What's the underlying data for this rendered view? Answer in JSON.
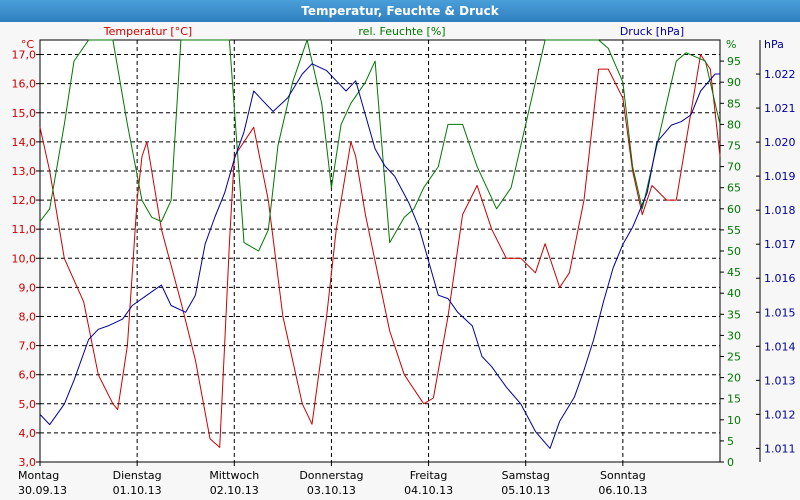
{
  "window_title": "Temperatur, Feuchte & Druck",
  "chart_data": {
    "type": "line",
    "title": "Temperatur, Feuchte & Druck",
    "x_ticks": [
      {
        "day": "Montag",
        "date": "30.09.13"
      },
      {
        "day": "Dienstag",
        "date": "01.10.13"
      },
      {
        "day": "Mittwoch",
        "date": "02.10.13"
      },
      {
        "day": "Donnerstag",
        "date": "03.10.13"
      },
      {
        "day": "Freitag",
        "date": "04.10.13"
      },
      {
        "day": "Samstag",
        "date": "05.10.13"
      },
      {
        "day": "Sonntag",
        "date": "06.10.13"
      }
    ],
    "x_range_days": [
      0,
      7
    ],
    "grid": true,
    "axes": {
      "temperature": {
        "label": "Temperatur [°C]",
        "unit": "°C",
        "min": 3.0,
        "max": 17.5,
        "ticks": [
          "3,0",
          "4,0",
          "5,0",
          "6,0",
          "7,0",
          "8,0",
          "9,0",
          "10,0",
          "11,0",
          "12,0",
          "13,0",
          "14,0",
          "15,0",
          "16,0",
          "17,0"
        ],
        "color": "#cc0000"
      },
      "humidity": {
        "label": "rel. Feuchte [%]",
        "unit": "%",
        "min": 0,
        "max": 100,
        "ticks": [
          "0",
          "5",
          "10",
          "15",
          "20",
          "25",
          "30",
          "35",
          "40",
          "45",
          "50",
          "55",
          "60",
          "65",
          "70",
          "75",
          "80",
          "85",
          "90",
          "95"
        ],
        "color": "#007700"
      },
      "pressure": {
        "label": "Druck [hPa]",
        "unit": "hPa",
        "min": 1010.6,
        "max": 1023.0,
        "ticks": [
          "1.011",
          "1.012",
          "1.013",
          "1.014",
          "1.015",
          "1.016",
          "1.017",
          "1.018",
          "1.019",
          "1.020",
          "1.021",
          "1.022"
        ],
        "color": "#000099"
      }
    },
    "series": [
      {
        "name": "Temperatur [°C]",
        "axis": "temperature",
        "color": "#cc0000",
        "x": [
          0.0,
          0.1,
          0.25,
          0.45,
          0.6,
          0.75,
          0.8,
          0.9,
          0.95,
          1.0,
          1.05,
          1.1,
          1.25,
          1.45,
          1.6,
          1.75,
          1.85,
          1.9,
          1.95,
          2.0,
          2.2,
          2.35,
          2.5,
          2.7,
          2.8,
          2.95,
          3.05,
          3.2,
          3.25,
          3.35,
          3.6,
          3.75,
          3.95,
          4.05,
          4.2,
          4.35,
          4.5,
          4.65,
          4.8,
          4.95,
          5.1,
          5.2,
          5.35,
          5.45,
          5.6,
          5.75,
          5.85,
          6.0,
          6.1,
          6.2,
          6.3,
          6.45,
          6.55,
          6.65,
          6.8,
          6.9,
          7.0
        ],
        "y": [
          14.5,
          13.0,
          10.0,
          8.5,
          6.0,
          5.0,
          4.8,
          7.0,
          9.5,
          12.0,
          13.5,
          14.0,
          11.0,
          8.5,
          6.5,
          3.8,
          3.5,
          7.0,
          10.5,
          13.5,
          14.5,
          12.0,
          8.0,
          5.0,
          4.3,
          8.0,
          11.0,
          14.0,
          13.5,
          11.5,
          7.5,
          6.0,
          5.0,
          5.2,
          8.0,
          11.5,
          12.5,
          11.0,
          10.0,
          10.0,
          9.5,
          10.5,
          9.0,
          9.5,
          12.0,
          16.5,
          16.5,
          15.5,
          13.0,
          11.5,
          12.5,
          12.0,
          12.0,
          14.0,
          17.0,
          16.5,
          13.5
        ]
      },
      {
        "name": "rel. Feuchte [%]",
        "axis": "humidity",
        "color": "#007700",
        "x": [
          0.0,
          0.1,
          0.25,
          0.35,
          0.5,
          0.6,
          0.75,
          0.9,
          1.05,
          1.15,
          1.25,
          1.35,
          1.45,
          1.6,
          1.75,
          1.95,
          2.1,
          2.25,
          2.35,
          2.45,
          2.6,
          2.75,
          2.9,
          3.0,
          3.1,
          3.2,
          3.35,
          3.45,
          3.6,
          3.75,
          3.85,
          3.95,
          4.1,
          4.2,
          4.35,
          4.5,
          4.6,
          4.7,
          4.85,
          5.0,
          5.1,
          5.2,
          5.35,
          5.5,
          5.6,
          5.75,
          5.85,
          6.0,
          6.1,
          6.2,
          6.35,
          6.45,
          6.55,
          6.65,
          6.75,
          6.85,
          6.95,
          7.0
        ],
        "y": [
          57,
          60,
          80,
          95,
          100,
          100,
          100,
          80,
          62,
          58,
          57,
          62,
          100,
          100,
          100,
          100,
          52,
          50,
          55,
          75,
          90,
          100,
          85,
          65,
          80,
          85,
          90,
          95,
          52,
          58,
          60,
          65,
          70,
          80,
          80,
          70,
          65,
          60,
          65,
          80,
          90,
          100,
          100,
          100,
          100,
          100,
          98,
          90,
          70,
          60,
          75,
          85,
          95,
          97,
          96,
          95,
          85,
          80
        ]
      },
      {
        "name": "Druck [hPa]",
        "axis": "pressure",
        "color": "#000099",
        "x": [
          0.0,
          0.1,
          0.25,
          0.35,
          0.5,
          0.6,
          0.7,
          0.85,
          0.95,
          1.1,
          1.25,
          1.35,
          1.5,
          1.6,
          1.7,
          1.8,
          1.9,
          2.0,
          2.1,
          2.2,
          2.3,
          2.4,
          2.55,
          2.7,
          2.8,
          2.95,
          3.05,
          3.15,
          3.25,
          3.35,
          3.45,
          3.55,
          3.65,
          3.8,
          3.9,
          4.0,
          4.1,
          4.2,
          4.3,
          4.45,
          4.55,
          4.65,
          4.8,
          4.95,
          5.1,
          5.25,
          5.35,
          5.5,
          5.6,
          5.7,
          5.8,
          5.9,
          6.0,
          6.1,
          6.25,
          6.35,
          6.5,
          6.6,
          6.7,
          6.8,
          6.95,
          7.0
        ],
        "y": [
          1012.0,
          1011.7,
          1012.3,
          1013.0,
          1014.2,
          1014.5,
          1014.6,
          1014.8,
          1015.2,
          1015.5,
          1015.8,
          1015.2,
          1015.0,
          1015.5,
          1017.0,
          1017.8,
          1018.5,
          1019.5,
          1020.3,
          1021.5,
          1021.2,
          1020.9,
          1021.3,
          1022.0,
          1022.3,
          1022.1,
          1021.8,
          1021.5,
          1021.8,
          1020.8,
          1019.8,
          1019.3,
          1019.0,
          1018.2,
          1017.5,
          1016.5,
          1015.5,
          1015.4,
          1015.0,
          1014.6,
          1013.7,
          1013.4,
          1012.8,
          1012.3,
          1011.5,
          1011.0,
          1011.8,
          1012.5,
          1013.3,
          1014.2,
          1015.3,
          1016.3,
          1017.0,
          1017.5,
          1018.5,
          1020.0,
          1020.5,
          1020.6,
          1020.8,
          1021.5,
          1022.0,
          1022.0
        ]
      }
    ]
  }
}
